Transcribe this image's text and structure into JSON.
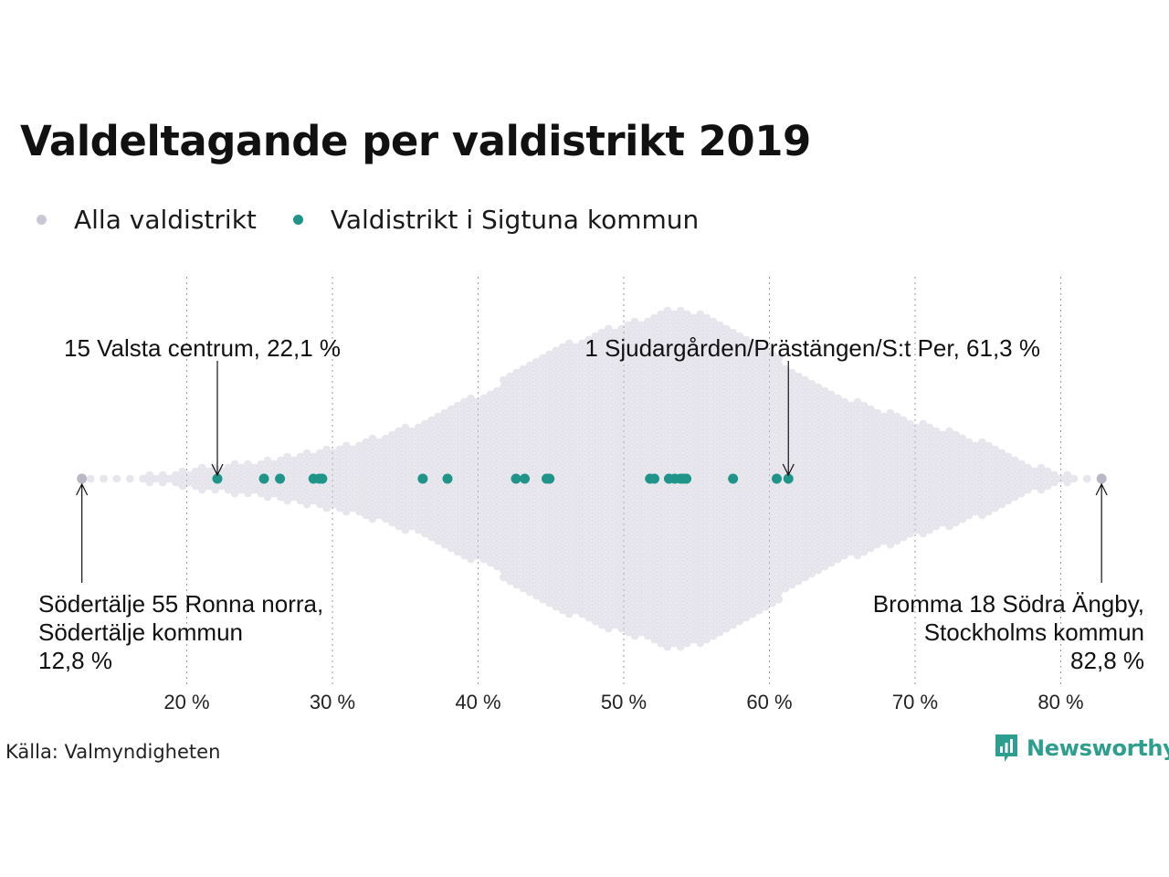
{
  "chart_data": {
    "type": "scatter",
    "title": "Valdeltagande per valdistrikt 2019",
    "xlabel": "",
    "ylabel": "",
    "xlim": [
      10,
      85
    ],
    "x_ticks": [
      20,
      30,
      40,
      50,
      60,
      70,
      80
    ],
    "x_tick_labels": [
      "20 %",
      "30 %",
      "40 %",
      "50 %",
      "60 %",
      "70 %",
      "80 %"
    ],
    "grid": "vertical dotted",
    "legend": {
      "placement": "top-left",
      "entries": [
        {
          "label": "Alla valdistrikt",
          "color": "#c9c8d6"
        },
        {
          "label": "Valdistrikt i Sigtuna kommun",
          "color": "#1e9588"
        }
      ]
    },
    "series": [
      {
        "name": "Alla valdistrikt",
        "color": "#c9c8d6",
        "distribution": "beeswarm of all voting districts, min 12.8, max 82.8, peak density near 54",
        "extremes": [
          12.8,
          82.8
        ]
      },
      {
        "name": "Valdistrikt i Sigtuna kommun",
        "color": "#1e9588",
        "values": [
          22.1,
          25.3,
          26.4,
          28.7,
          29.1,
          29.3,
          36.2,
          37.9,
          42.6,
          43.2,
          44.7,
          44.9,
          51.8,
          52.1,
          53.1,
          53.5,
          53.9,
          54.1,
          54.3,
          57.5,
          60.5,
          61.3
        ]
      }
    ],
    "annotations": [
      {
        "lines": [
          "15 Valsta centrum, 22,1 %"
        ],
        "x": 22.1
      },
      {
        "lines": [
          "1 Sjudargården/Prästängen/S:t Per, 61,3 %"
        ],
        "x": 61.3
      },
      {
        "lines": [
          "Södertälje 55 Ronna norra,",
          "Södertälje kommun",
          "12,8 %"
        ],
        "x": 12.8
      },
      {
        "lines": [
          "Bromma 18 Södra Ängby,",
          "Stockholms kommun",
          "82,8 %"
        ],
        "x": 82.8
      }
    ]
  },
  "source": "Källa: Valmyndigheten",
  "brand": "Newsworthy",
  "colors": {
    "brand": "#2e9e8e",
    "highlight": "#1e9588",
    "background_dots": "#c9c8d6"
  }
}
